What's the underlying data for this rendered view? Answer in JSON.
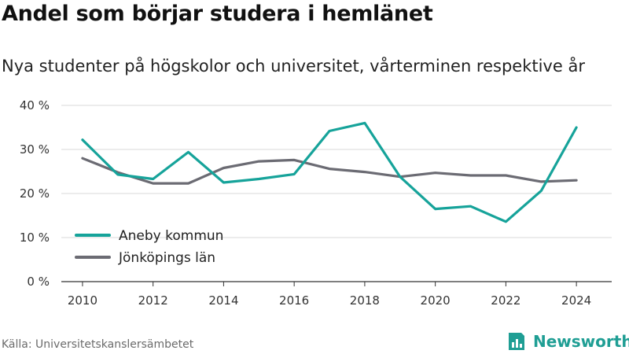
{
  "header": {
    "title": "Andel som börjar studera i hemlänet",
    "subtitle": "Nya studenter på högskolor och universitet, vårterminen respektive år"
  },
  "footer": {
    "source": "Källa: Universitetskanslersämbetet",
    "brand": "Newsworthy",
    "brand_icon": "bar-chart-document-icon",
    "brand_color": "#1f9e94"
  },
  "chart_data": {
    "type": "line",
    "x": [
      2010,
      2011,
      2012,
      2013,
      2014,
      2015,
      2016,
      2017,
      2018,
      2019,
      2020,
      2021,
      2022,
      2023,
      2024
    ],
    "series": [
      {
        "name": "Aneby kommun",
        "color": "#16a39a",
        "values": [
          32.2,
          24.3,
          23.3,
          29.4,
          22.5,
          23.3,
          24.4,
          34.2,
          36.0,
          23.8,
          16.5,
          17.1,
          13.6,
          20.6,
          35.0
        ]
      },
      {
        "name": "Jönköpings län",
        "color": "#6b6b73",
        "values": [
          28.0,
          24.8,
          22.3,
          22.3,
          25.8,
          27.3,
          27.6,
          25.6,
          24.9,
          23.8,
          24.7,
          24.1,
          24.1,
          22.7,
          23.0
        ]
      }
    ],
    "xticks": [
      2010,
      2012,
      2014,
      2016,
      2018,
      2020,
      2022,
      2024
    ],
    "yticks": [
      0,
      10,
      20,
      30,
      40
    ],
    "ytick_labels": [
      "0 %",
      "10 %",
      "20 %",
      "30 %",
      "40 %"
    ],
    "ylim": [
      0,
      40
    ],
    "xlim": [
      2010,
      2024
    ],
    "grid": true,
    "legend_position": "lower-left"
  }
}
